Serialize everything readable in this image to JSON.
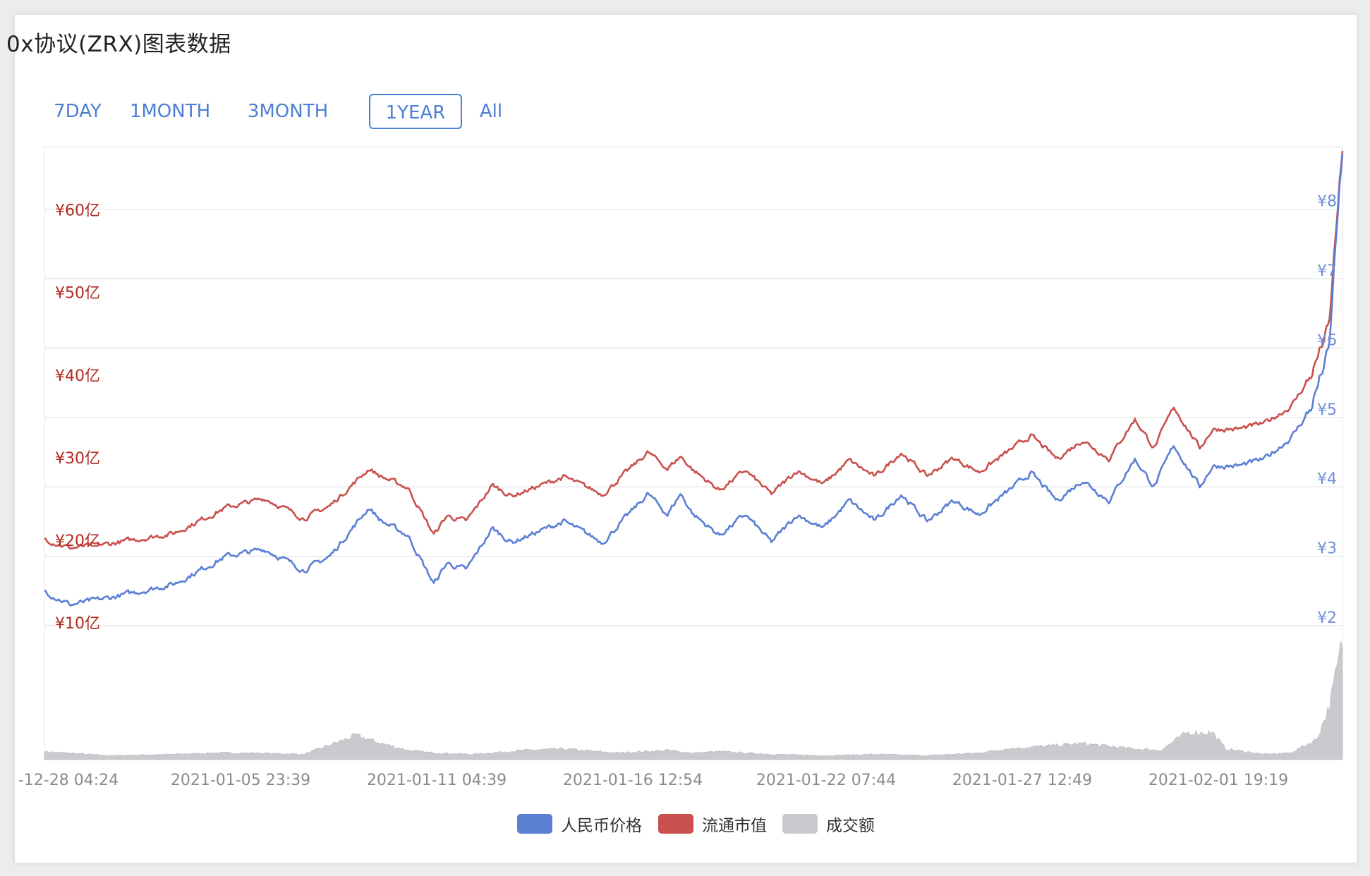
{
  "page": {
    "title": "0x协议(ZRX)图表数据"
  },
  "tabs": [
    {
      "label": "7DAY",
      "active": false
    },
    {
      "label": "1MONTH",
      "active": false
    },
    {
      "label": "3MONTH",
      "active": false
    },
    {
      "label": "1YEAR",
      "active": true
    },
    {
      "label": "All",
      "active": false
    }
  ],
  "colors": {
    "price": "#5b7fd3",
    "market_cap": "#c9504c",
    "volume": "#c9c9ce",
    "left_axis_text": "#b22a1e",
    "right_axis_text": "#6f8fd6",
    "grid": "#e4e4e4",
    "x_axis_text": "#8a8a8a"
  },
  "chart_data": {
    "type": "line",
    "title": "",
    "x_ticks": [
      "-12-28 04:24",
      "2021-01-05 23:39",
      "2021-01-11 04:39",
      "2021-01-16 12:54",
      "2021-01-22 07:44",
      "2021-01-27 12:49",
      "2021-02-01 19:19"
    ],
    "y_left": {
      "ticks": [
        "¥10亿",
        "¥20亿",
        "¥30亿",
        "¥40亿",
        "¥50亿",
        "¥60亿"
      ],
      "range": [
        10,
        68
      ],
      "unit": "亿"
    },
    "y_right": {
      "ticks": [
        "¥2",
        "¥3",
        "¥4",
        "¥5",
        "¥6",
        "¥7",
        "¥8"
      ],
      "range": [
        2,
        8.9
      ]
    },
    "x_range": [
      0,
      1
    ],
    "grid": true,
    "legend_position": "bottom-center",
    "series": [
      {
        "name": "人民币价格",
        "axis": "right",
        "x": [
          0.0,
          0.02,
          0.05,
          0.1,
          0.14,
          0.17,
          0.2,
          0.22,
          0.25,
          0.26,
          0.28,
          0.3,
          0.31,
          0.325,
          0.345,
          0.36,
          0.4,
          0.43,
          0.465,
          0.48,
          0.49,
          0.5,
          0.52,
          0.54,
          0.56,
          0.58,
          0.6,
          0.62,
          0.64,
          0.66,
          0.68,
          0.7,
          0.72,
          0.74,
          0.76,
          0.78,
          0.8,
          0.82,
          0.84,
          0.855,
          0.87,
          0.88,
          0.89,
          0.9,
          0.92,
          0.94,
          0.96,
          0.975,
          0.99,
          0.995,
          1.0
        ],
        "values": [
          2.5,
          2.3,
          2.4,
          2.6,
          3.0,
          3.1,
          2.8,
          3.0,
          3.7,
          3.5,
          3.3,
          2.6,
          2.9,
          2.8,
          3.4,
          3.2,
          3.5,
          3.2,
          3.9,
          3.6,
          3.9,
          3.6,
          3.3,
          3.6,
          3.2,
          3.6,
          3.4,
          3.8,
          3.5,
          3.9,
          3.5,
          3.8,
          3.6,
          3.9,
          4.2,
          3.8,
          4.1,
          3.8,
          4.4,
          4.0,
          4.6,
          4.3,
          4.0,
          4.3,
          4.3,
          4.4,
          4.7,
          5.1,
          6.0,
          7.6,
          8.8
        ]
      },
      {
        "name": "流通市值",
        "axis": "left",
        "x": [
          0.0,
          0.02,
          0.05,
          0.1,
          0.14,
          0.17,
          0.2,
          0.22,
          0.25,
          0.26,
          0.28,
          0.3,
          0.31,
          0.325,
          0.345,
          0.36,
          0.4,
          0.43,
          0.465,
          0.48,
          0.49,
          0.5,
          0.52,
          0.54,
          0.56,
          0.58,
          0.6,
          0.62,
          0.64,
          0.66,
          0.68,
          0.7,
          0.72,
          0.74,
          0.76,
          0.78,
          0.8,
          0.82,
          0.84,
          0.855,
          0.87,
          0.88,
          0.89,
          0.9,
          0.92,
          0.94,
          0.96,
          0.975,
          0.99,
          0.995,
          1.0
        ],
        "values": [
          20.5,
          19.4,
          19.9,
          21.2,
          24.3,
          25.4,
          23.0,
          24.5,
          29.0,
          28.0,
          26.7,
          21.0,
          23.3,
          22.6,
          27.0,
          25.7,
          28.0,
          25.9,
          31.0,
          29.0,
          30.5,
          28.8,
          26.4,
          28.8,
          25.9,
          28.8,
          27.1,
          30.0,
          28.0,
          31.0,
          28.1,
          30.3,
          28.6,
          30.8,
          33.0,
          30.2,
          32.5,
          30.2,
          35.0,
          31.5,
          36.5,
          34.0,
          31.5,
          33.8,
          33.8,
          34.5,
          36.5,
          40.0,
          46.5,
          58.0,
          67.5
        ]
      },
      {
        "name": "成交额",
        "type": "area",
        "x": [
          0.0,
          0.05,
          0.1,
          0.13,
          0.16,
          0.2,
          0.24,
          0.26,
          0.28,
          0.3,
          0.33,
          0.37,
          0.4,
          0.44,
          0.48,
          0.5,
          0.52,
          0.56,
          0.6,
          0.64,
          0.68,
          0.72,
          0.74,
          0.77,
          0.8,
          0.84,
          0.86,
          0.88,
          0.885,
          0.9,
          0.91,
          0.94,
          0.96,
          0.98,
          0.99,
          1.0
        ],
        "values": [
          0.06,
          0.03,
          0.04,
          0.05,
          0.05,
          0.04,
          0.18,
          0.12,
          0.07,
          0.05,
          0.04,
          0.07,
          0.08,
          0.05,
          0.07,
          0.05,
          0.06,
          0.04,
          0.03,
          0.04,
          0.03,
          0.05,
          0.08,
          0.1,
          0.12,
          0.08,
          0.07,
          0.2,
          0.2,
          0.2,
          0.08,
          0.04,
          0.05,
          0.15,
          0.4,
          0.88
        ]
      }
    ]
  }
}
